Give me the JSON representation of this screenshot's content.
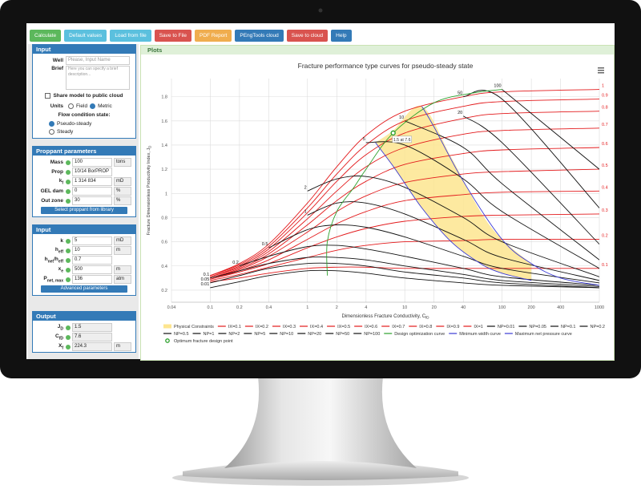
{
  "toolbar": {
    "buttons": [
      {
        "label": "Calculate",
        "color": "#5cb85c"
      },
      {
        "label": "Default values",
        "color": "#5bc0de"
      },
      {
        "label": "Load from file",
        "color": "#5bc0de"
      },
      {
        "label": "Save to File",
        "color": "#d9534f"
      },
      {
        "label": "PDF Report",
        "color": "#f0ad4e"
      },
      {
        "label": "PEngTools cloud",
        "color": "#337ab7"
      },
      {
        "label": "Save to cloud",
        "color": "#d9534f"
      },
      {
        "label": "Help",
        "color": "#337ab7"
      }
    ]
  },
  "input": {
    "title": "Input",
    "well_label": "Well",
    "well_placeholder": "Please, Input Name",
    "brief_label": "Brief",
    "brief_placeholder": "Here you can specify a brief description...",
    "share": "Share model to public cloud",
    "units_label": "Units",
    "units": [
      "Field",
      "Metric"
    ],
    "units_selected": 1,
    "flow_label": "Flow condition state:",
    "flow": [
      "Pseudo-steady",
      "Steady"
    ],
    "flow_selected": 0
  },
  "proppant": {
    "title": "Proppant parameters",
    "rows": [
      {
        "label": [
          "Mass"
        ],
        "value": "100",
        "unit": "tons"
      },
      {
        "label": [
          "Prop"
        ],
        "value": "10/14 BorPROP"
      },
      {
        "label": [
          "k",
          "f"
        ],
        "value": "1 314 834",
        "unit": "mD"
      },
      {
        "label": [
          "GEL dam"
        ],
        "value": "0",
        "unit": "%"
      },
      {
        "label": [
          "Out zone"
        ],
        "value": "30",
        "unit": "%"
      }
    ],
    "button": "Select proppant from library"
  },
  "reservoir": {
    "title": "Input",
    "rows": [
      {
        "label": [
          "k"
        ],
        "value": "5",
        "unit": "mD"
      },
      {
        "label": [
          "h",
          "eff"
        ],
        "value": "10",
        "unit": "m"
      },
      {
        "label": [
          "h",
          "net",
          "/h",
          "eff"
        ],
        "value": "0.7"
      },
      {
        "label": [
          "x",
          "e"
        ],
        "value": "500",
        "unit": "m"
      },
      {
        "label": [
          "P",
          "net, max"
        ],
        "value": "136",
        "unit": "atm"
      }
    ],
    "button": "Advanced parameters"
  },
  "output": {
    "title": "Output",
    "rows": [
      {
        "label": [
          "J",
          "D"
        ],
        "value": "1.5"
      },
      {
        "label": [
          "C",
          "fD"
        ],
        "value": "7.6"
      },
      {
        "label": [
          "X",
          "f"
        ],
        "value": "224.3",
        "unit": "m"
      }
    ]
  },
  "plots": {
    "title": "Plots"
  },
  "chart_data": {
    "type": "line",
    "title": "Fracture performance type curves for pseudo-steady state",
    "x_label": [
      "Dimensionless Fracture Conductivity, C",
      "fD"
    ],
    "y_label": [
      "Fracture Dimensionless Productivity Index, J",
      "D"
    ],
    "x_log": true,
    "grid": true,
    "xlim": [
      0.04,
      1000
    ],
    "xticks": [
      0.04,
      0.1,
      0.2,
      0.4,
      1,
      2,
      4,
      10,
      20,
      40,
      100,
      200,
      400,
      1000
    ],
    "ylim": [
      0.1,
      1.95
    ],
    "yticks": [
      0.2,
      0.4,
      0.6,
      0.8,
      1,
      1.2,
      1.4,
      1.6,
      1.8
    ],
    "x": [
      0.1,
      0.2,
      0.4,
      1,
      2,
      4,
      10,
      40,
      100,
      1000
    ],
    "series": [
      {
        "name": "Physical Constraints",
        "kind": "band",
        "color": "#fde58f",
        "x": [
          5,
          7.6,
          15,
          30,
          60,
          100,
          200
        ],
        "values": [
          1.42,
          1.52,
          1.72,
          1.3,
          0.85,
          0.62,
          0.42
        ],
        "lower": [
          1.42,
          1.22,
          0.88,
          0.6,
          0.42,
          0.34,
          0.28
        ]
      },
      {
        "name": "IX=0.1",
        "label": "0.1",
        "color": "#e31a1c",
        "values": [
          0.27,
          0.3,
          0.34,
          0.38,
          0.39,
          0.39,
          0.38,
          0.38,
          0.38,
          0.38
        ]
      },
      {
        "name": "IX=0.2",
        "label": "0.2",
        "color": "#e31a1c",
        "values": [
          0.28,
          0.33,
          0.39,
          0.47,
          0.53,
          0.57,
          0.6,
          0.61,
          0.62,
          0.62
        ]
      },
      {
        "name": "IX=0.3",
        "label": "0.3",
        "color": "#e31a1c",
        "values": [
          0.29,
          0.35,
          0.42,
          0.55,
          0.64,
          0.71,
          0.77,
          0.81,
          0.82,
          0.83
        ]
      },
      {
        "name": "IX=0.4",
        "label": "0.4",
        "color": "#e31a1c",
        "values": [
          0.29,
          0.36,
          0.45,
          0.62,
          0.75,
          0.85,
          0.94,
          0.99,
          1.01,
          1.02
        ]
      },
      {
        "name": "IX=0.5",
        "label": "0.5",
        "color": "#e31a1c",
        "values": [
          0.3,
          0.37,
          0.48,
          0.68,
          0.85,
          0.98,
          1.09,
          1.16,
          1.18,
          1.2
        ]
      },
      {
        "name": "IX=0.6",
        "label": "0.6",
        "color": "#e31a1c",
        "values": [
          0.3,
          0.38,
          0.5,
          0.74,
          0.94,
          1.1,
          1.24,
          1.33,
          1.36,
          1.38
        ]
      },
      {
        "name": "IX=0.7",
        "label": "0.7",
        "color": "#e31a1c",
        "values": [
          0.31,
          0.39,
          0.52,
          0.79,
          1.02,
          1.22,
          1.38,
          1.49,
          1.52,
          1.54
        ]
      },
      {
        "name": "IX=0.8",
        "label": "0.8",
        "color": "#e31a1c",
        "values": [
          0.31,
          0.4,
          0.54,
          0.84,
          1.1,
          1.32,
          1.5,
          1.62,
          1.66,
          1.68
        ]
      },
      {
        "name": "IX=0.9",
        "label": "0.9",
        "color": "#e31a1c",
        "values": [
          0.32,
          0.41,
          0.56,
          0.88,
          1.16,
          1.4,
          1.6,
          1.72,
          1.76,
          1.78
        ]
      },
      {
        "name": "IX=1",
        "label": "1",
        "color": "#e31a1c",
        "values": [
          0.32,
          0.42,
          0.58,
          0.92,
          1.22,
          1.48,
          1.68,
          1.8,
          1.84,
          1.86
        ]
      },
      {
        "name": "NP=0.01",
        "label": "0.01",
        "color": "#111111",
        "values": [
          0.22,
          0.27,
          0.32,
          0.36,
          0.36,
          0.34,
          0.3,
          0.26,
          0.24,
          0.22
        ]
      },
      {
        "name": "NP=0.05",
        "label": "0.05",
        "color": "#111111",
        "values": [
          0.26,
          0.32,
          0.38,
          0.42,
          0.42,
          0.4,
          0.35,
          0.3,
          0.26,
          0.22
        ]
      },
      {
        "name": "NP=0.1",
        "label": "0.1",
        "color": "#111111",
        "values": [
          0.3,
          0.36,
          0.42,
          0.47,
          0.47,
          0.45,
          0.4,
          0.33,
          0.28,
          0.23
        ]
      },
      {
        "name": "NP=0.2",
        "label": "0.2",
        "color": "#111111",
        "values": [
          null,
          0.4,
          0.48,
          0.56,
          0.57,
          0.54,
          0.48,
          0.38,
          0.31,
          0.24
        ]
      },
      {
        "name": "NP=0.5",
        "label": "0.5",
        "color": "#111111",
        "values": [
          null,
          null,
          0.55,
          0.7,
          0.74,
          0.72,
          0.64,
          0.48,
          0.38,
          0.26
        ]
      },
      {
        "name": "NP=1",
        "label": "1",
        "color": "#111111",
        "values": [
          null,
          null,
          null,
          0.82,
          0.92,
          0.92,
          0.83,
          0.62,
          0.47,
          0.28
        ]
      },
      {
        "name": "NP=2",
        "label": "2",
        "color": "#111111",
        "values": [
          null,
          null,
          null,
          1.02,
          1.12,
          1.14,
          1.05,
          0.8,
          0.6,
          0.31
        ]
      },
      {
        "name": "NP=5",
        "label": "5",
        "color": "#111111",
        "values": [
          null,
          null,
          null,
          null,
          null,
          1.42,
          1.4,
          1.12,
          0.85,
          0.38
        ]
      },
      {
        "name": "NP=10",
        "label": "10",
        "color": "#111111",
        "values": [
          null,
          null,
          null,
          null,
          null,
          null,
          1.6,
          1.38,
          1.08,
          0.45
        ]
      },
      {
        "name": "NP=20",
        "label": "20",
        "color": "#111111",
        "values": [
          null,
          null,
          null,
          null,
          null,
          null,
          null,
          1.64,
          1.42,
          0.58
        ]
      },
      {
        "name": "NP=50",
        "label": "50",
        "color": "#111111",
        "values": [
          null,
          null,
          null,
          null,
          null,
          null,
          null,
          1.8,
          1.78,
          0.88
        ]
      },
      {
        "name": "NP=100",
        "label": "100",
        "color": "#111111",
        "values": [
          null,
          null,
          null,
          null,
          null,
          null,
          null,
          null,
          1.86,
          1.2
        ]
      },
      {
        "name": "Design optimization curve",
        "color": "#2ca02c",
        "x": [
          1.6,
          1.6,
          2,
          3,
          4,
          7.6,
          20,
          50,
          100
        ],
        "values": [
          0.32,
          0.6,
          0.85,
          1.05,
          1.2,
          1.5,
          1.75,
          1.83,
          1.86
        ]
      },
      {
        "name": "Minimum width curve",
        "color": "#3b3bd6",
        "x": [
          15,
          20,
          40,
          100,
          200,
          400,
          1000
        ],
        "values": [
          1.72,
          1.55,
          1.1,
          0.62,
          0.42,
          0.3,
          0.24
        ]
      },
      {
        "name": "Maximum net pressure curve",
        "color": "#3b3bd6",
        "x": [
          5,
          8,
          15,
          30,
          60,
          100,
          200
        ],
        "values": [
          1.42,
          1.2,
          0.88,
          0.6,
          0.42,
          0.34,
          0.28
        ]
      },
      {
        "name": "Optimum fracture design point",
        "kind": "point",
        "color": "#2ca02c",
        "x": [
          7.6
        ],
        "values": [
          1.5
        ],
        "annotation": "1.5 at 7.6"
      }
    ]
  }
}
